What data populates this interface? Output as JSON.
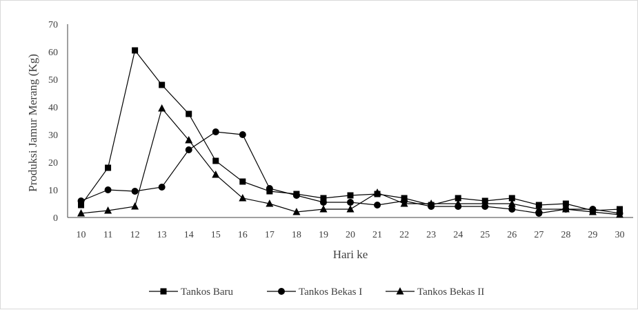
{
  "chart_data": {
    "type": "line",
    "title": "",
    "xlabel": "Hari ke",
    "ylabel": "Produksi Jamur  Merang (Kg)",
    "x": [
      10,
      11,
      12,
      13,
      14,
      15,
      16,
      17,
      18,
      19,
      20,
      21,
      22,
      23,
      24,
      25,
      26,
      27,
      28,
      29,
      30
    ],
    "ylim": [
      0,
      70
    ],
    "yticks": [
      0,
      10,
      20,
      30,
      40,
      50,
      60,
      70
    ],
    "grid": false,
    "legend_position": "bottom",
    "series": [
      {
        "name": "Tankos Baru",
        "marker": "square",
        "values": [
          4.5,
          18,
          60.5,
          48,
          37.5,
          20.5,
          13,
          9.5,
          8.5,
          7,
          8,
          8.5,
          7,
          4.5,
          7,
          6,
          7,
          4.5,
          5,
          2.5,
          3
        ]
      },
      {
        "name": "Tankos Bekas I",
        "marker": "circle",
        "values": [
          6,
          10,
          9.5,
          11,
          24.5,
          31,
          30,
          10.5,
          8,
          5.5,
          5.5,
          4.5,
          6,
          4,
          4,
          4,
          3,
          1.5,
          3,
          3,
          1.5
        ]
      },
      {
        "name": "Tankos Bekas II",
        "marker": "triangle",
        "values": [
          1.5,
          2.5,
          4,
          39.5,
          28,
          15.5,
          7,
          5,
          2,
          3,
          3,
          9,
          5,
          5,
          5,
          5,
          5,
          3,
          3,
          2,
          1
        ]
      }
    ],
    "colors": {
      "line": "#000000",
      "axis": "#404040",
      "text": "#404040"
    }
  }
}
